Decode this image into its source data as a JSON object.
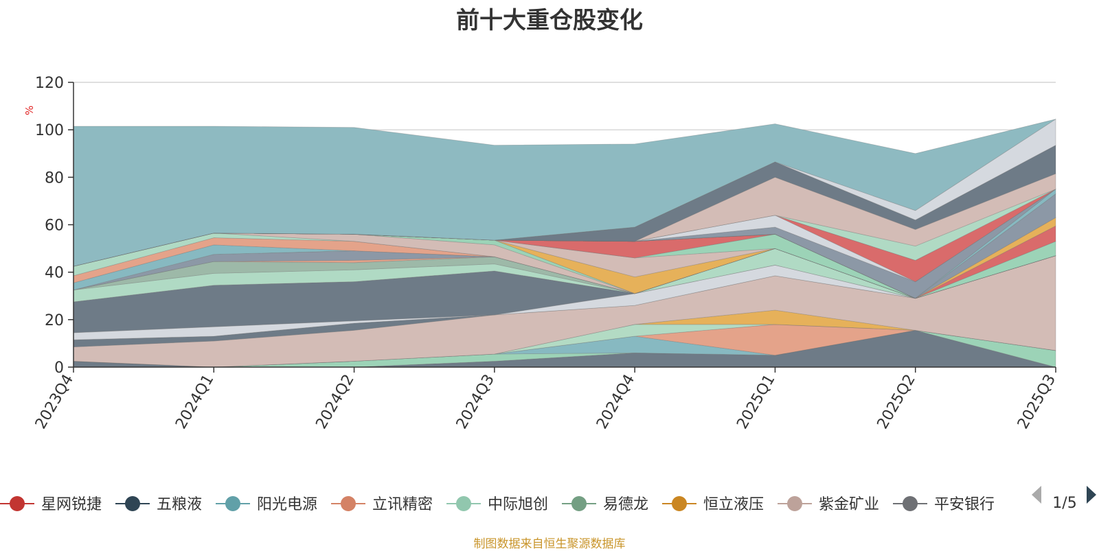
{
  "title": "前十大重仓股变化",
  "footer": "制图数据来自恒生聚源数据库",
  "pager": {
    "text": "1/5"
  },
  "chart_data": {
    "type": "area",
    "stacked": true,
    "title": "前十大重仓股变化",
    "ylabel": "%",
    "ylim": [
      0,
      120
    ],
    "yticks": [
      0,
      20,
      40,
      60,
      80,
      100,
      120
    ],
    "grid": true,
    "legend_position": "bottom",
    "categories": [
      "2023Q4",
      "2024Q1",
      "2024Q2",
      "2024Q3",
      "2024Q4",
      "2025Q1",
      "2025Q2",
      "2025Q3"
    ],
    "series": [
      {
        "name": "",
        "color": "#6e7b87",
        "values": [
          2.5,
          0,
          0,
          2.5,
          6,
          5,
          15.5,
          0
        ]
      },
      {
        "name": "",
        "color": "#9cd3b7",
        "values": [
          0,
          0,
          2.5,
          3,
          0,
          0,
          0,
          7
        ]
      },
      {
        "name": "",
        "color": "#87b9c1",
        "values": [
          0,
          0,
          0,
          0,
          7,
          0,
          0,
          0
        ]
      },
      {
        "name": "",
        "color": "#e4a38a",
        "values": [
          0,
          0,
          0,
          0,
          0,
          13,
          0,
          0
        ]
      },
      {
        "name": "",
        "color": "#b3dbc4",
        "values": [
          0,
          0,
          0,
          0,
          5,
          0,
          0,
          0
        ]
      },
      {
        "name": "",
        "color": "#e6b15a",
        "values": [
          0,
          0,
          0,
          0,
          0,
          6,
          0,
          0
        ]
      },
      {
        "name": "",
        "color": "#d3bcb6",
        "values": [
          6,
          11,
          13,
          16.5,
          8,
          14.5,
          13.5,
          40
        ]
      },
      {
        "name": "",
        "color": "#6e7b87",
        "values": [
          3,
          2,
          3,
          0,
          0,
          0,
          0,
          0
        ]
      },
      {
        "name": "",
        "color": "#d5d9df",
        "values": [
          3,
          4,
          1,
          0,
          5,
          4.5,
          0,
          0
        ]
      },
      {
        "name": "",
        "color": "#6e7b87",
        "values": [
          13,
          17.5,
          16.5,
          18.5,
          0,
          0,
          0,
          0
        ]
      },
      {
        "name": "",
        "color": "#b0dac4",
        "values": [
          5,
          5,
          5,
          3,
          0,
          7,
          0,
          0
        ]
      },
      {
        "name": "",
        "color": "#9db9a8",
        "values": [
          0,
          5,
          3,
          3,
          0,
          0,
          0,
          0
        ]
      },
      {
        "name": "",
        "color": "#e4a38a",
        "values": [
          0,
          0,
          1,
          0,
          0,
          0,
          0,
          0
        ]
      },
      {
        "name": "",
        "color": "#8c98a6",
        "values": [
          0,
          3,
          4,
          0,
          0,
          0,
          0,
          0
        ]
      },
      {
        "name": "",
        "color": "#87b9c1",
        "values": [
          3,
          4,
          0,
          0,
          0,
          0,
          0,
          0
        ]
      },
      {
        "name": "",
        "color": "#e4a38a",
        "values": [
          3,
          3,
          4,
          0,
          0,
          0,
          0,
          0
        ]
      },
      {
        "name": "",
        "color": "#b0dac4",
        "values": [
          4,
          2,
          0,
          0,
          0,
          0,
          0,
          0
        ]
      },
      {
        "name": "",
        "color": "#d3bcb6",
        "values": [
          0,
          0,
          3,
          5,
          0,
          0,
          0,
          0
        ]
      },
      {
        "name": "",
        "color": "#9cd3b7",
        "values": [
          0,
          0,
          0,
          2,
          0,
          0,
          0,
          0
        ]
      },
      {
        "name": "",
        "color": "#e6b15a",
        "values": [
          0,
          0,
          0,
          0,
          7,
          0,
          0,
          0
        ]
      },
      {
        "name": "",
        "color": "#d3bcb6",
        "values": [
          0,
          0,
          0,
          0,
          8,
          0,
          0,
          0
        ]
      },
      {
        "name": "",
        "color": "#9cd3b7",
        "values": [
          0,
          0,
          0,
          0,
          0,
          6,
          0,
          0
        ]
      },
      {
        "name": "",
        "color": "#d96b6b",
        "values": [
          0,
          0,
          0,
          0,
          7,
          0,
          0,
          0
        ]
      },
      {
        "name": "",
        "color": "#9cd3b7",
        "values": [
          0,
          0,
          0,
          0,
          0,
          0,
          0,
          6
        ]
      },
      {
        "name": "",
        "color": "#d96b6b",
        "values": [
          0,
          0,
          0,
          0,
          0,
          0,
          0,
          6.5
        ]
      },
      {
        "name": "",
        "color": "#e6b15a",
        "values": [
          0,
          0,
          0,
          0,
          0,
          0,
          0,
          3.5
        ]
      },
      {
        "name": "",
        "color": "#8c98a6",
        "values": [
          0,
          0,
          0,
          0,
          0,
          0,
          0,
          10
        ]
      },
      {
        "name": "",
        "color": "#87b9c1",
        "values": [
          0,
          0,
          0,
          0,
          0,
          0,
          0,
          2
        ]
      },
      {
        "name": "",
        "color": "#8c98a6",
        "values": [
          0,
          0,
          0,
          0,
          0,
          3,
          7,
          0
        ]
      },
      {
        "name": "",
        "color": "#d5d9df",
        "values": [
          0,
          0,
          0,
          0,
          0,
          5,
          0,
          0
        ]
      },
      {
        "name": "",
        "color": "#d96b6b",
        "values": [
          0,
          0,
          0,
          0,
          0,
          0,
          9,
          0
        ]
      },
      {
        "name": "",
        "color": "#b0dac4",
        "values": [
          0,
          0,
          0,
          0,
          0,
          0,
          6,
          0
        ]
      },
      {
        "name": "",
        "color": "#d3bcb6",
        "values": [
          0,
          0,
          0,
          0,
          0,
          16,
          7,
          6.5
        ]
      },
      {
        "name": "",
        "color": "#6e7b87",
        "values": [
          0,
          0,
          0,
          0,
          6,
          6.5,
          4,
          12
        ]
      },
      {
        "name": "",
        "color": "#d5d9df",
        "values": [
          0,
          0,
          0,
          0,
          0,
          0,
          4,
          11
        ]
      },
      {
        "name": "",
        "color": "#8ebac1",
        "values": [
          59,
          45,
          45,
          40,
          35,
          16,
          24,
          0
        ]
      }
    ],
    "legend": [
      {
        "name": "星网锐捷",
        "color": "#c23531"
      },
      {
        "name": "五粮液",
        "color": "#2f4554"
      },
      {
        "name": "阳光电源",
        "color": "#61a0a8"
      },
      {
        "name": "立讯精密",
        "color": "#d48265"
      },
      {
        "name": "中际旭创",
        "color": "#91c7ae"
      },
      {
        "name": "易德龙",
        "color": "#749f83"
      },
      {
        "name": "恒立液压",
        "color": "#ca8622"
      },
      {
        "name": "紫金矿业",
        "color": "#bda29a"
      },
      {
        "name": "平安银行",
        "color": "#6e7074"
      }
    ]
  }
}
